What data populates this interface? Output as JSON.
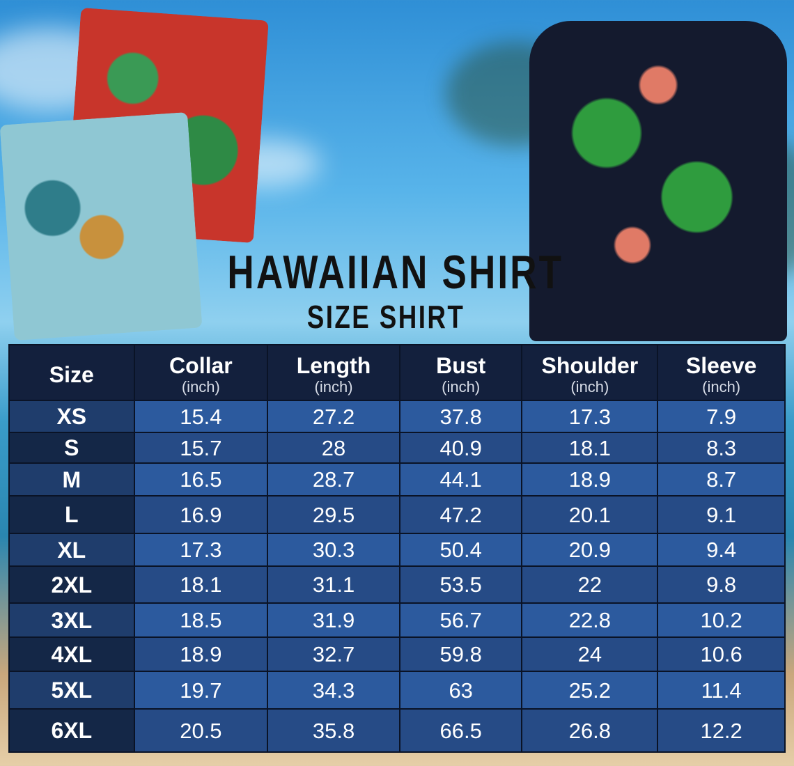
{
  "title": "HAWAIIAN SHIRT",
  "subtitle": "SIZE SHIRT",
  "table": {
    "headers": [
      {
        "label": "Size",
        "unit": ""
      },
      {
        "label": "Collar",
        "unit": "(inch)"
      },
      {
        "label": "Length",
        "unit": "(inch)"
      },
      {
        "label": "Bust",
        "unit": "(inch)"
      },
      {
        "label": "Shoulder",
        "unit": "(inch)"
      },
      {
        "label": "Sleeve",
        "unit": "(inch)"
      }
    ],
    "rows": [
      [
        "XS",
        "15.4",
        "27.2",
        "37.8",
        "17.3",
        "7.9"
      ],
      [
        "S",
        "15.7",
        "28",
        "40.9",
        "18.1",
        "8.3"
      ],
      [
        "M",
        "16.5",
        "28.7",
        "44.1",
        "18.9",
        "8.7"
      ],
      [
        "L",
        "16.9",
        "29.5",
        "47.2",
        "20.1",
        "9.1"
      ],
      [
        "XL",
        "17.3",
        "30.3",
        "50.4",
        "20.9",
        "9.4"
      ],
      [
        "2XL",
        "18.1",
        "31.1",
        "53.5",
        "22",
        "9.8"
      ],
      [
        "3XL",
        "18.5",
        "31.9",
        "56.7",
        "22.8",
        "10.2"
      ],
      [
        "4XL",
        "18.9",
        "32.7",
        "59.8",
        "24",
        "10.6"
      ],
      [
        "5XL",
        "19.7",
        "34.3",
        "63",
        "25.2",
        "11.4"
      ],
      [
        "6XL",
        "20.5",
        "35.8",
        "66.5",
        "26.8",
        "12.2"
      ]
    ]
  },
  "colors": {
    "header": "#13203d",
    "row_light": "#2c5a9e",
    "row_dark": "#264b86"
  }
}
